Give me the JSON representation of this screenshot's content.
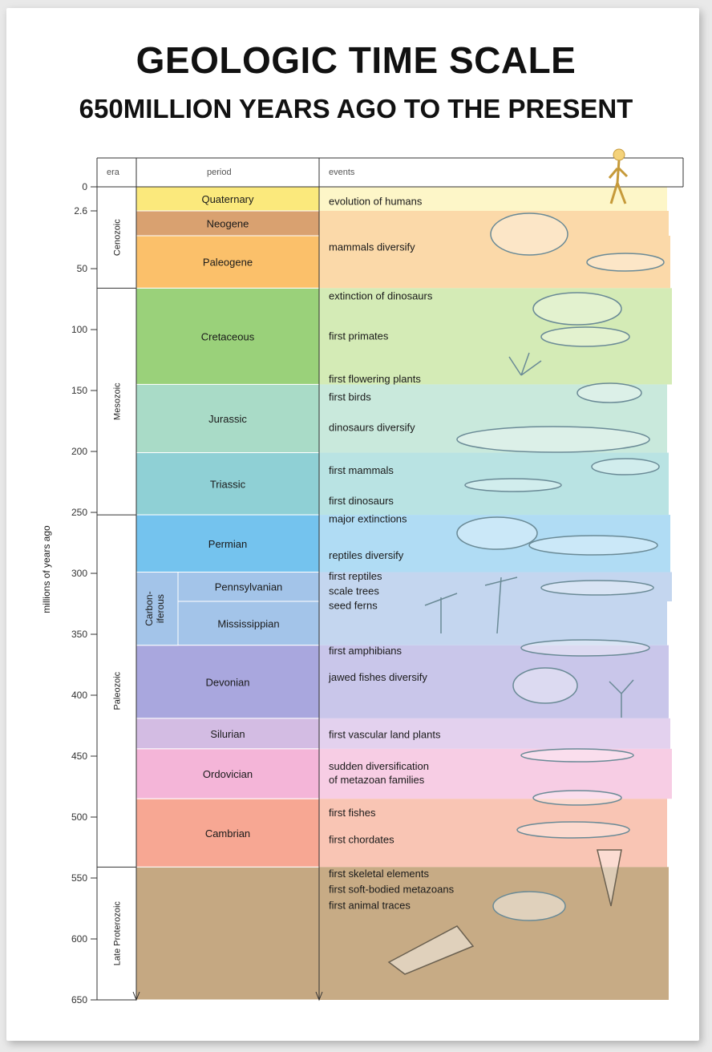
{
  "title": "GEOLOGIC TIME SCALE",
  "subtitle": "650MILLION YEARS AGO TO THE PRESENT",
  "headers": {
    "era": "era",
    "period": "period",
    "events": "events"
  },
  "axis_label": "millions of years ago",
  "ticks": [
    "0",
    "2.6",
    "50",
    "100",
    "150",
    "200",
    "250",
    "300",
    "350",
    "400",
    "450",
    "500",
    "550",
    "600",
    "650"
  ],
  "eras": [
    {
      "name": "Cenozoic",
      "start": 0,
      "end": 66
    },
    {
      "name": "Mesozoic",
      "start": 66,
      "end": 252
    },
    {
      "name": "Paleozoic",
      "start": 252,
      "end": 541
    },
    {
      "name": "Late Proterozoic",
      "start": 541,
      "end": 650
    }
  ],
  "carboniferous_label": [
    "Carbon-",
    "iferous"
  ],
  "periods": [
    {
      "name": "Quaternary",
      "start": 0,
      "end": 2.6,
      "color": "#fbe97c",
      "band": "#fdf6c8"
    },
    {
      "name": "Neogene",
      "start": 2.6,
      "end": 23,
      "color": "#d9a170",
      "band": "#fbd9a9"
    },
    {
      "name": "Paleogene",
      "start": 23,
      "end": 66,
      "color": "#fbc06a",
      "band": "#fbd9a9"
    },
    {
      "name": "Cretaceous",
      "start": 66,
      "end": 145,
      "color": "#9ad17a",
      "band": "#d4ebb6"
    },
    {
      "name": "Jurassic",
      "start": 145,
      "end": 201,
      "color": "#a9dbc7",
      "band": "#c9e9dc"
    },
    {
      "name": "Triassic",
      "start": 201,
      "end": 252,
      "color": "#8fd0d5",
      "band": "#b9e3e3"
    },
    {
      "name": "Permian",
      "start": 252,
      "end": 299,
      "color": "#74c3ee",
      "band": "#b0dcf4"
    },
    {
      "name": "Pennsylvanian",
      "start": 299,
      "end": 323,
      "color": "#a3c4e9",
      "band": "#c4d6ef",
      "carboniferous": true
    },
    {
      "name": "Mississippian",
      "start": 323,
      "end": 359,
      "color": "#a3c4e9",
      "band": "#c4d6ef",
      "carboniferous": true
    },
    {
      "name": "Devonian",
      "start": 359,
      "end": 419,
      "color": "#a9a7de",
      "band": "#c9c6ea"
    },
    {
      "name": "Silurian",
      "start": 419,
      "end": 444,
      "color": "#d3bce3",
      "band": "#e3d1ee"
    },
    {
      "name": "Ordovician",
      "start": 444,
      "end": 485,
      "color": "#f4b5d8",
      "band": "#f7cde4"
    },
    {
      "name": "Cambrian",
      "start": 485,
      "end": 541,
      "color": "#f7a793",
      "band": "#f9c5b4"
    },
    {
      "name": "",
      "start": 541,
      "end": 650,
      "color": "#c5a882",
      "band": "#c7ab85"
    }
  ],
  "events": [
    {
      "text": "evolution of humans",
      "at": 1.5
    },
    {
      "text": "mammals diversify",
      "at": 32
    },
    {
      "text": "extinction of dinosaurs",
      "at": 72
    },
    {
      "text": "first primates",
      "at": 105
    },
    {
      "text": "first flowering plants",
      "at": 140
    },
    {
      "text": "first birds",
      "at": 155
    },
    {
      "text": "dinosaurs diversify",
      "at": 180
    },
    {
      "text": "first mammals",
      "at": 215
    },
    {
      "text": "first dinosaurs",
      "at": 240
    },
    {
      "text": "major extinctions",
      "at": 255
    },
    {
      "text": "reptiles diversify",
      "at": 285
    },
    {
      "text": "first reptiles",
      "at": 302
    },
    {
      "text": "scale trees",
      "at": 314
    },
    {
      "text": "seed ferns",
      "at": 326
    },
    {
      "text": "first amphibians",
      "at": 363
    },
    {
      "text": "jawed fishes diversify",
      "at": 385
    },
    {
      "text": "first vascular land plants",
      "at": 432
    },
    {
      "text": "sudden diversification",
      "at": 458
    },
    {
      "text": "of metazoan families",
      "at": 469
    },
    {
      "text": "first fishes",
      "at": 496
    },
    {
      "text": "first chordates",
      "at": 518
    },
    {
      "text": "first skeletal elements",
      "at": 546
    },
    {
      "text": "first soft-bodied metazoans",
      "at": 559
    },
    {
      "text": "first animal traces",
      "at": 572
    }
  ],
  "icons": [
    "human-icon",
    "mammal-icon",
    "dinosaur-icon",
    "primate-icon",
    "plant-icon",
    "bird-icon",
    "reptile-icon",
    "tree-icon",
    "fish-icon",
    "trilobite-icon",
    "shell-icon",
    "fossil-slab-icon"
  ]
}
